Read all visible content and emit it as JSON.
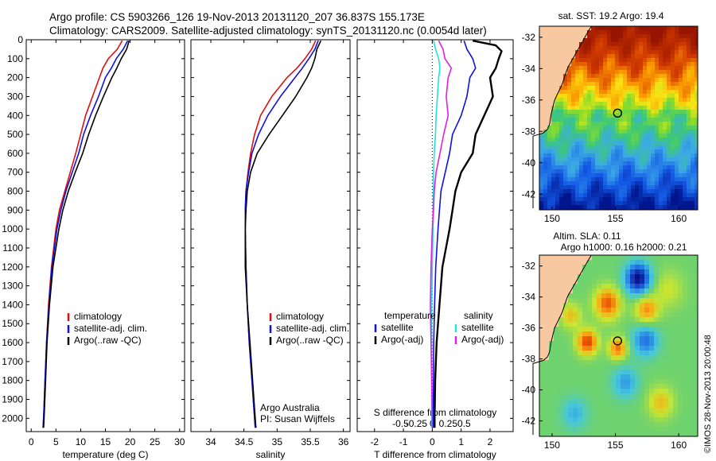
{
  "header": {
    "line1": "Argo profile: CS 5903266_126 19-Nov-2013 20131120_207 36.837S 155.173E",
    "line2": "Climatology: CARS2009. Satellite-adjusted climatology: synTS_20131120.nc (0.0054d later)"
  },
  "colors": {
    "climatology": "#e01010",
    "satellite": "#1010e0",
    "argo": "#000000",
    "salinity_sat": "#20e0e0",
    "salinity_argo": "#e020e0",
    "land": "#f8c8a0"
  },
  "chart_data": [
    {
      "type": "line",
      "id": "temperature",
      "xlabel": "temperature (deg C)",
      "ylabel": "",
      "xlim": [
        -1,
        31
      ],
      "ylim": [
        2070,
        0
      ],
      "x_ticks": [
        0,
        5,
        10,
        15,
        20,
        25,
        30
      ],
      "x_tick_labels": [
        "0",
        "5",
        "10",
        "15",
        "20",
        "25",
        "30"
      ],
      "y_ticks": [
        0,
        100,
        200,
        300,
        400,
        500,
        600,
        700,
        800,
        900,
        1000,
        1100,
        1200,
        1300,
        1400,
        1500,
        1600,
        1700,
        1800,
        1900,
        2000
      ],
      "y_tick_labels": [
        "0",
        "100",
        "200",
        "300",
        "400",
        "500",
        "600",
        "700",
        "800",
        "900",
        "1000",
        "1100",
        "1200",
        "1300",
        "1400",
        "1500",
        "1600",
        "1700",
        "1800",
        "1900",
        "2000"
      ],
      "legend": [
        "climatology",
        "satellite-adj. clim.",
        "Argo(..raw -QC)"
      ],
      "series": [
        {
          "name": "climatology",
          "color": "#e01010",
          "depth": [
            5,
            50,
            100,
            150,
            200,
            300,
            400,
            500,
            600,
            700,
            800,
            900,
            1000,
            1200,
            1400,
            1600,
            1800,
            2000,
            2050
          ],
          "values": [
            18.4,
            17.4,
            15.6,
            14.5,
            13.8,
            12.4,
            11.0,
            10.0,
            9.0,
            7.9,
            6.8,
            5.7,
            5.0,
            4.1,
            3.5,
            3.1,
            2.8,
            2.5,
            2.4
          ]
        },
        {
          "name": "satellite-adj. clim.",
          "color": "#1010e0",
          "depth": [
            5,
            50,
            100,
            150,
            200,
            300,
            400,
            500,
            600,
            700,
            800,
            900,
            1000,
            1200,
            1400,
            1600,
            1800,
            2000,
            2050
          ],
          "values": [
            19.5,
            18.6,
            17.2,
            16.2,
            15.0,
            13.6,
            12.0,
            10.6,
            9.6,
            8.3,
            7.0,
            6.0,
            5.2,
            4.2,
            3.6,
            3.1,
            2.8,
            2.5,
            2.4
          ]
        },
        {
          "name": "Argo(..raw -QC)",
          "color": "#000000",
          "depth": [
            5,
            50,
            100,
            150,
            200,
            300,
            400,
            500,
            600,
            700,
            800,
            900,
            1000,
            1200,
            1400,
            1600,
            1800,
            2000,
            2050
          ],
          "values": [
            19.8,
            19.3,
            18.2,
            17.3,
            16.3,
            14.6,
            13.0,
            11.6,
            10.4,
            8.9,
            7.5,
            6.4,
            5.6,
            4.4,
            3.7,
            3.2,
            2.9,
            2.6,
            2.5
          ]
        }
      ]
    },
    {
      "type": "line",
      "id": "salinity",
      "xlabel": "salinity",
      "ylabel": "",
      "xlim": [
        33.7,
        36.1
      ],
      "ylim": [
        2070,
        0
      ],
      "x_ticks": [
        34,
        34.5,
        35,
        35.5,
        36
      ],
      "x_tick_labels": [
        "34",
        "34.5",
        "35",
        "35.5",
        "36"
      ],
      "legend": [
        "climatology",
        "satellite-adj. clim.",
        "Argo(..raw -QC)"
      ],
      "annotations": [
        "Argo Australia",
        "PI: Susan Wijffels"
      ],
      "series": [
        {
          "name": "climatology",
          "color": "#e01010",
          "depth": [
            5,
            50,
            100,
            150,
            200,
            300,
            400,
            500,
            600,
            700,
            800,
            900,
            1000,
            1200,
            1400,
            1600,
            1800,
            2000,
            2050
          ],
          "values": [
            35.58,
            35.52,
            35.42,
            35.3,
            35.15,
            34.92,
            34.75,
            34.66,
            34.6,
            34.56,
            34.53,
            34.52,
            34.52,
            34.53,
            34.55,
            34.58,
            34.62,
            34.66,
            34.67
          ]
        },
        {
          "name": "satellite-adj. clim.",
          "color": "#1010e0",
          "depth": [
            5,
            50,
            100,
            150,
            200,
            300,
            400,
            500,
            600,
            700,
            800,
            900,
            1000,
            1200,
            1400,
            1600,
            1800,
            2000,
            2050
          ],
          "values": [
            35.62,
            35.57,
            35.48,
            35.38,
            35.27,
            35.05,
            34.86,
            34.72,
            34.62,
            34.57,
            34.53,
            34.52,
            34.52,
            34.53,
            34.55,
            34.58,
            34.62,
            34.66,
            34.67
          ]
        },
        {
          "name": "Argo(..raw -QC)",
          "color": "#000000",
          "depth": [
            5,
            50,
            100,
            150,
            200,
            300,
            400,
            500,
            600,
            700,
            800,
            900,
            1000,
            1200,
            1400,
            1600,
            1800,
            2000,
            2050
          ],
          "values": [
            35.66,
            35.6,
            35.57,
            35.52,
            35.45,
            35.28,
            35.08,
            34.88,
            34.7,
            34.6,
            34.55,
            34.53,
            34.52,
            34.52,
            34.55,
            34.59,
            34.63,
            34.67,
            34.68
          ]
        }
      ]
    },
    {
      "type": "line",
      "id": "differences",
      "xlabel": "T difference from climatology",
      "x2label": "S difference from climatology",
      "xlim": [
        -2.6,
        2.8
      ],
      "ylim": [
        2070,
        0
      ],
      "x_ticks": [
        -2,
        -1,
        0,
        1,
        2
      ],
      "x_tick_labels": [
        "-2",
        "-1",
        "0",
        "1",
        "2"
      ],
      "x2_ticks": [
        -0.5,
        -0.25,
        0,
        0.25,
        0.5
      ],
      "x2_tick_labels": [
        "-0.5",
        "-0.25",
        "0",
        "0.25",
        "0.5"
      ],
      "legend_titles": [
        "temperature",
        "salinity"
      ],
      "legend": [
        "satellite",
        "Argo(-adj)",
        "satellite",
        "Argo(-adj)"
      ],
      "series": [
        {
          "name": "T satellite",
          "color": "#1010e0",
          "depth": [
            5,
            50,
            100,
            150,
            200,
            300,
            400,
            500,
            600,
            700,
            800,
            900,
            1000,
            1200,
            1400,
            1600,
            1800,
            2000,
            2050
          ],
          "values": [
            1.1,
            1.2,
            1.4,
            1.5,
            1.3,
            1.2,
            1.0,
            0.7,
            0.6,
            0.45,
            0.3,
            0.25,
            0.2,
            0.12,
            0.08,
            0.05,
            0.04,
            0.03,
            0.03
          ]
        },
        {
          "name": "T Argo(-adj)",
          "color": "#000000",
          "depth": [
            5,
            30,
            60,
            100,
            150,
            200,
            300,
            400,
            500,
            600,
            700,
            800,
            900,
            1000,
            1200,
            1400,
            1600,
            1800,
            2000,
            2050
          ],
          "values": [
            1.4,
            2.2,
            2.4,
            2.3,
            2.2,
            2.0,
            2.1,
            1.8,
            1.5,
            1.4,
            1.0,
            0.8,
            0.7,
            0.6,
            0.35,
            0.25,
            0.15,
            0.1,
            0.08,
            0.08
          ]
        },
        {
          "name": "S satellite",
          "color": "#20e0e0",
          "depth": [
            5,
            50,
            100,
            150,
            200,
            300,
            400,
            500,
            600,
            700,
            800,
            900,
            1000,
            1200,
            1400,
            1600,
            1800,
            2000,
            2050
          ],
          "values": [
            0.02,
            0.05,
            0.1,
            0.12,
            0.1,
            0.08,
            0.06,
            0.05,
            0.03,
            0.02,
            0.02,
            0.01,
            0.01,
            0.0,
            -0.01,
            -0.01,
            -0.01,
            -0.01,
            -0.01
          ]
        },
        {
          "name": "S Argo(-adj)",
          "color": "#e020e0",
          "depth": [
            5,
            50,
            100,
            150,
            200,
            300,
            400,
            500,
            600,
            700,
            800,
            900,
            1000,
            1200,
            1400,
            1600,
            1800,
            2000,
            2050
          ],
          "values": [
            0.1,
            0.17,
            0.2,
            0.3,
            0.25,
            0.22,
            0.25,
            0.18,
            0.12,
            0.06,
            0.03,
            0.02,
            0.0,
            -0.02,
            -0.03,
            -0.02,
            -0.01,
            0.0,
            0.0
          ]
        }
      ]
    },
    {
      "type": "heatmap",
      "id": "sst-map",
      "title": "sat. SST: 19.2  Argo: 19.4",
      "xlim": [
        149,
        161.5
      ],
      "ylim": [
        -43,
        -31.3
      ],
      "x_ticks": [
        150,
        155,
        160
      ],
      "x_tick_labels": [
        "150",
        "155",
        "160"
      ],
      "y_ticks": [
        -32,
        -34,
        -36,
        -38,
        -40,
        -42
      ],
      "y_tick_labels": [
        "-32",
        "-34",
        "-36",
        "-38",
        "-40",
        "-42"
      ],
      "argo_position": [
        155.173,
        -36.837
      ]
    },
    {
      "type": "heatmap",
      "id": "sla-map",
      "title": "Altim. SLA: 0.11",
      "subtitle": "Argo h1000: 0.16  h2000: 0.21",
      "xlim": [
        149,
        161.5
      ],
      "ylim": [
        -43,
        -31.3
      ],
      "x_ticks": [
        150,
        155,
        160
      ],
      "x_tick_labels": [
        "150",
        "155",
        "160"
      ],
      "y_ticks": [
        -32,
        -34,
        -36,
        -38,
        -40,
        -42
      ],
      "y_tick_labels": [
        "-32",
        "-34",
        "-36",
        "-38",
        "-40",
        "-42"
      ],
      "argo_position": [
        155.173,
        -36.837
      ]
    }
  ],
  "credit": "©IMOS 28-Nov-2013 20:00:48"
}
